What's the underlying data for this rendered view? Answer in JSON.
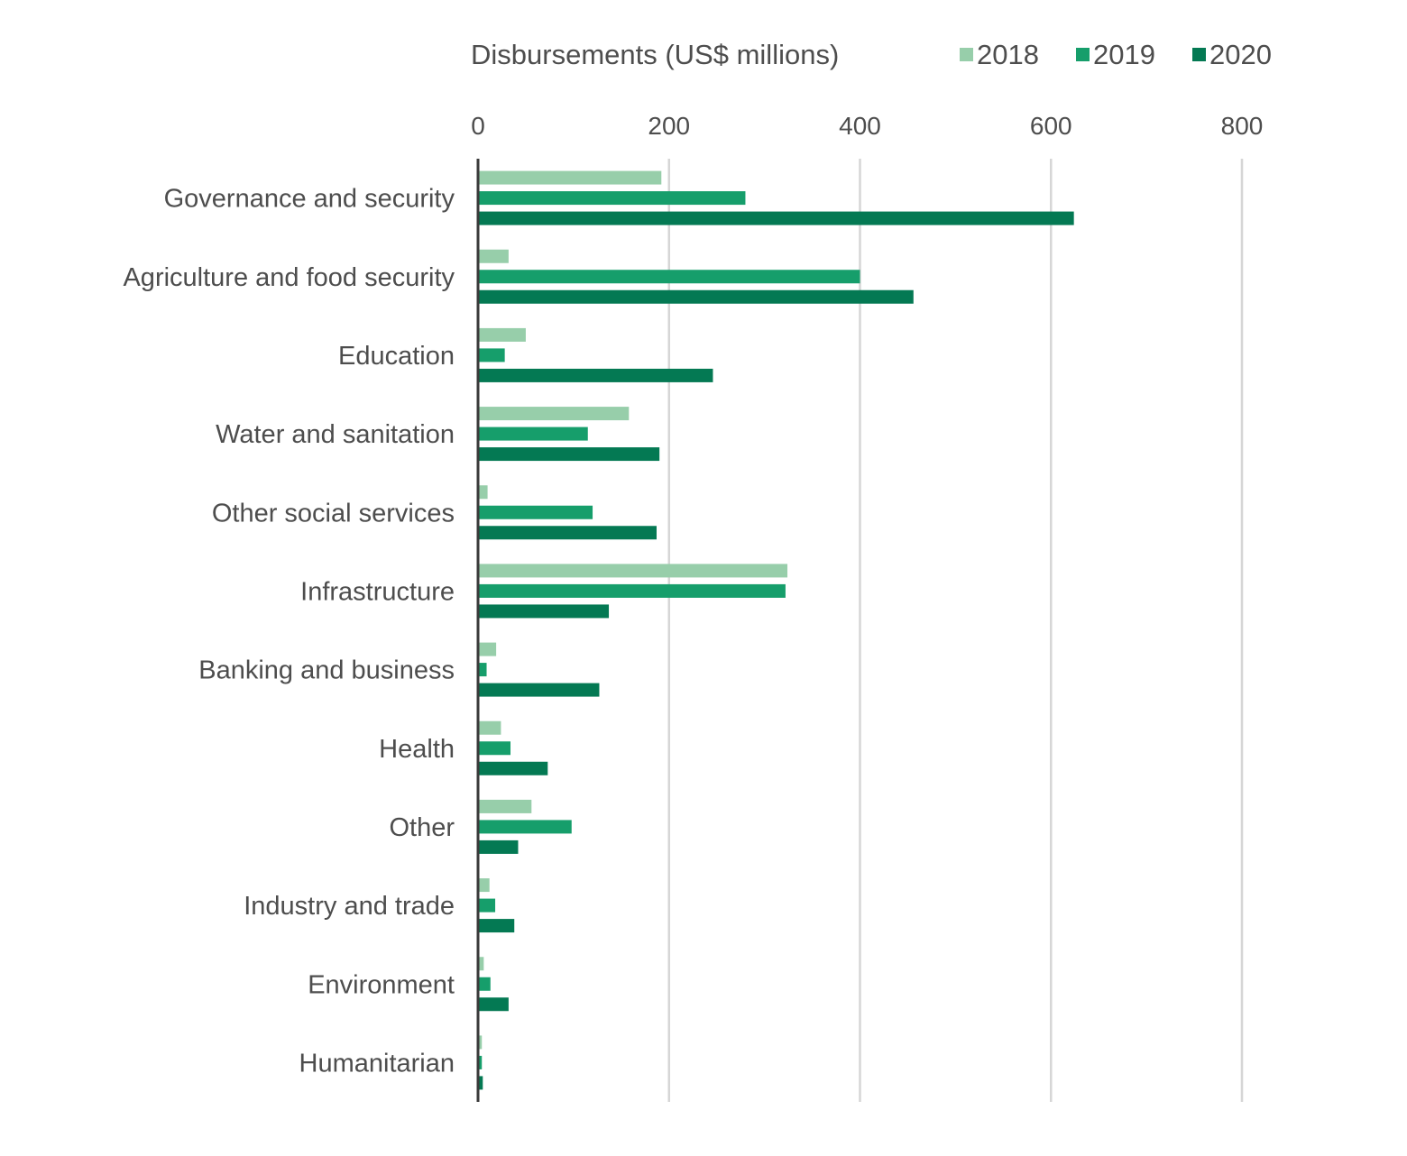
{
  "chart_data": {
    "type": "bar",
    "orientation": "horizontal",
    "title": "",
    "xlabel": "Disbursements (US$ millions)",
    "ylabel": "",
    "xlim": [
      0,
      800
    ],
    "xticks": [
      0,
      200,
      400,
      600,
      800
    ],
    "x_axis_position": "top",
    "grid": true,
    "legend_position": "top-right",
    "categories": [
      "Governance and security",
      "Agriculture and food security",
      "Education",
      "Water and sanitation",
      "Other social services",
      "Infrastructure",
      "Banking and business",
      "Health",
      "Other",
      "Industry and trade",
      "Environment",
      "Humanitarian"
    ],
    "series": [
      {
        "name": "2018",
        "color": "#97ceaa",
        "values": [
          192,
          32,
          50,
          158,
          10,
          324,
          19,
          24,
          56,
          12,
          6,
          4
        ]
      },
      {
        "name": "2019",
        "color": "#169e6b",
        "values": [
          280,
          400,
          28,
          115,
          120,
          322,
          9,
          34,
          98,
          18,
          13,
          4
        ]
      },
      {
        "name": "2020",
        "color": "#047953",
        "values": [
          624,
          456,
          246,
          190,
          187,
          137,
          127,
          73,
          42,
          38,
          32,
          5
        ]
      }
    ]
  }
}
